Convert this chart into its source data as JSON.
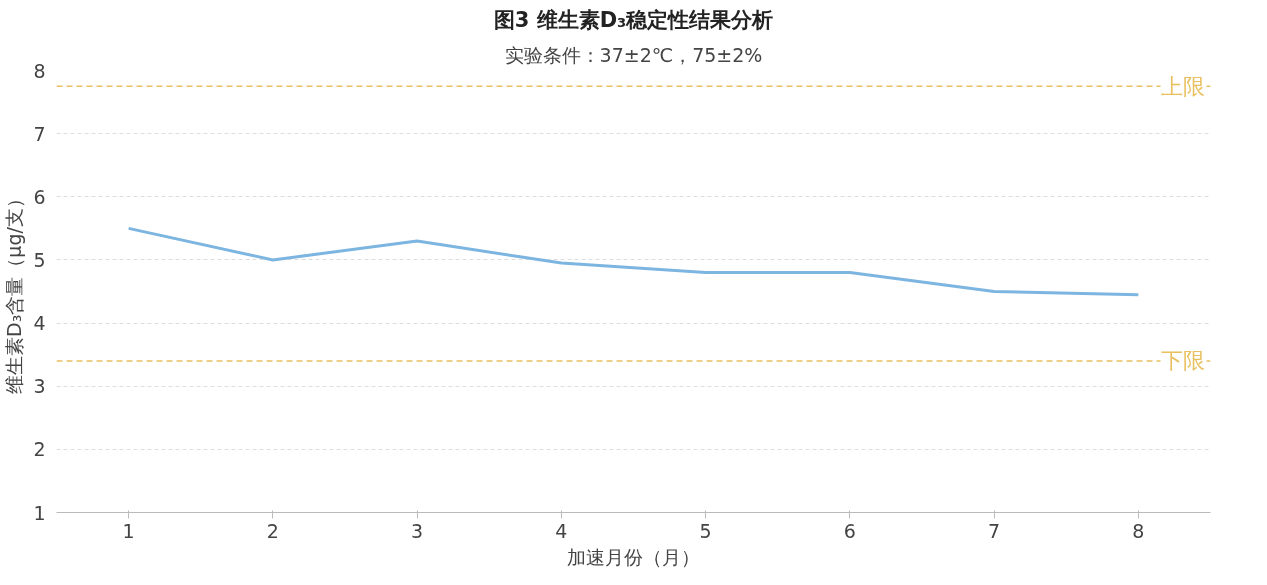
{
  "chart_data": {
    "type": "line",
    "title": "图3 维生素D₃稳定性结果分析",
    "subtitle": "实验条件：37±2℃，75±2%",
    "xlabel": "加速月份（月）",
    "ylabel": "维生素D₃含量（μg/支）",
    "categories": [
      "1",
      "2",
      "3",
      "4",
      "5",
      "6",
      "7",
      "8"
    ],
    "series": [
      {
        "color": "#7db5e1",
        "values": [
          5.5,
          5.0,
          5.3,
          4.95,
          4.8,
          4.8,
          4.5,
          4.45
        ]
      }
    ],
    "ylim": [
      1,
      8
    ],
    "yticks": [
      1,
      2,
      3,
      4,
      5,
      6,
      7,
      8
    ],
    "grid": "y",
    "marker": "none",
    "line_style": "solid",
    "ref_lines": [
      {
        "axis": "y",
        "value": 7.75,
        "label": "上限",
        "color": "#e8c060",
        "line_style": "dashed"
      },
      {
        "axis": "y",
        "value": 3.4,
        "label": "下限",
        "color": "#e8c060",
        "line_style": "dashed"
      }
    ]
  }
}
